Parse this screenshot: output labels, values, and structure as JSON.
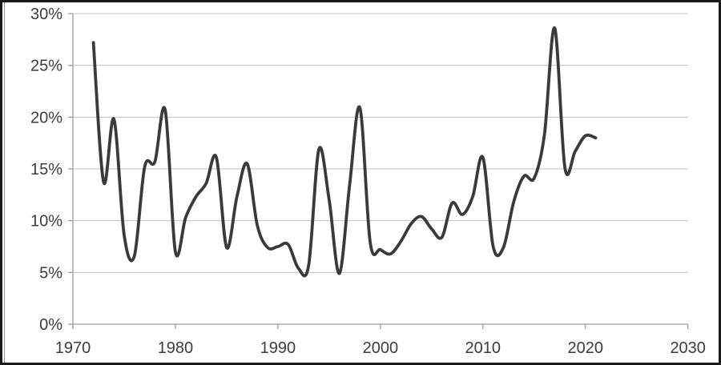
{
  "chart": {
    "title": "",
    "colors": {
      "line": "#3a3a3a",
      "gridline": "#c2c2c2",
      "axis": "#9c9c9c",
      "tick_text": "#3c3c3c",
      "background": "#ffffff",
      "frame_border": "#1a1a1a"
    }
  },
  "chart_data": {
    "type": "line",
    "title": "",
    "xlabel": "",
    "ylabel": "",
    "legend": "none",
    "grid": "horizontal",
    "smooth": true,
    "xlim": [
      1970,
      2030
    ],
    "ylim": [
      0,
      30
    ],
    "x_ticks": {
      "values": [
        1970,
        1980,
        1990,
        2000,
        2010,
        2020,
        2030
      ],
      "labels": [
        "1970",
        "1980",
        "1990",
        "2000",
        "2010",
        "2020",
        "2030"
      ]
    },
    "y_ticks": {
      "values": [
        0,
        5,
        10,
        15,
        20,
        25,
        30
      ],
      "labels": [
        "0%",
        "5%",
        "10%",
        "15%",
        "20%",
        "25%",
        "30%"
      ]
    },
    "x": [
      1972,
      1973,
      1974,
      1975,
      1976,
      1977,
      1978,
      1979,
      1980,
      1981,
      1982,
      1983,
      1984,
      1985,
      1986,
      1987,
      1988,
      1989,
      1990,
      1991,
      1992,
      1993,
      1994,
      1995,
      1996,
      1997,
      1998,
      1999,
      2000,
      2001,
      2002,
      2003,
      2004,
      2005,
      2006,
      2007,
      2008,
      2009,
      2010,
      2011,
      2012,
      2013,
      2014,
      2015,
      2016,
      2017,
      2018,
      2019,
      2020,
      2021
    ],
    "values": [
      27.2,
      13.7,
      19.8,
      8.6,
      6.6,
      15.2,
      15.7,
      20.7,
      7.0,
      10.3,
      12.3,
      13.6,
      16.1,
      7.4,
      12.3,
      15.5,
      9.5,
      7.4,
      7.5,
      7.7,
      5.4,
      5.7,
      16.9,
      12.0,
      4.9,
      13.5,
      20.9,
      7.9,
      7.2,
      6.8,
      8.0,
      9.7,
      10.4,
      9.2,
      8.4,
      11.7,
      10.6,
      12.3,
      16.1,
      7.5,
      7.4,
      11.8,
      14.3,
      14.1,
      18.3,
      28.6,
      15.1,
      16.7,
      18.2,
      18.0
    ]
  }
}
